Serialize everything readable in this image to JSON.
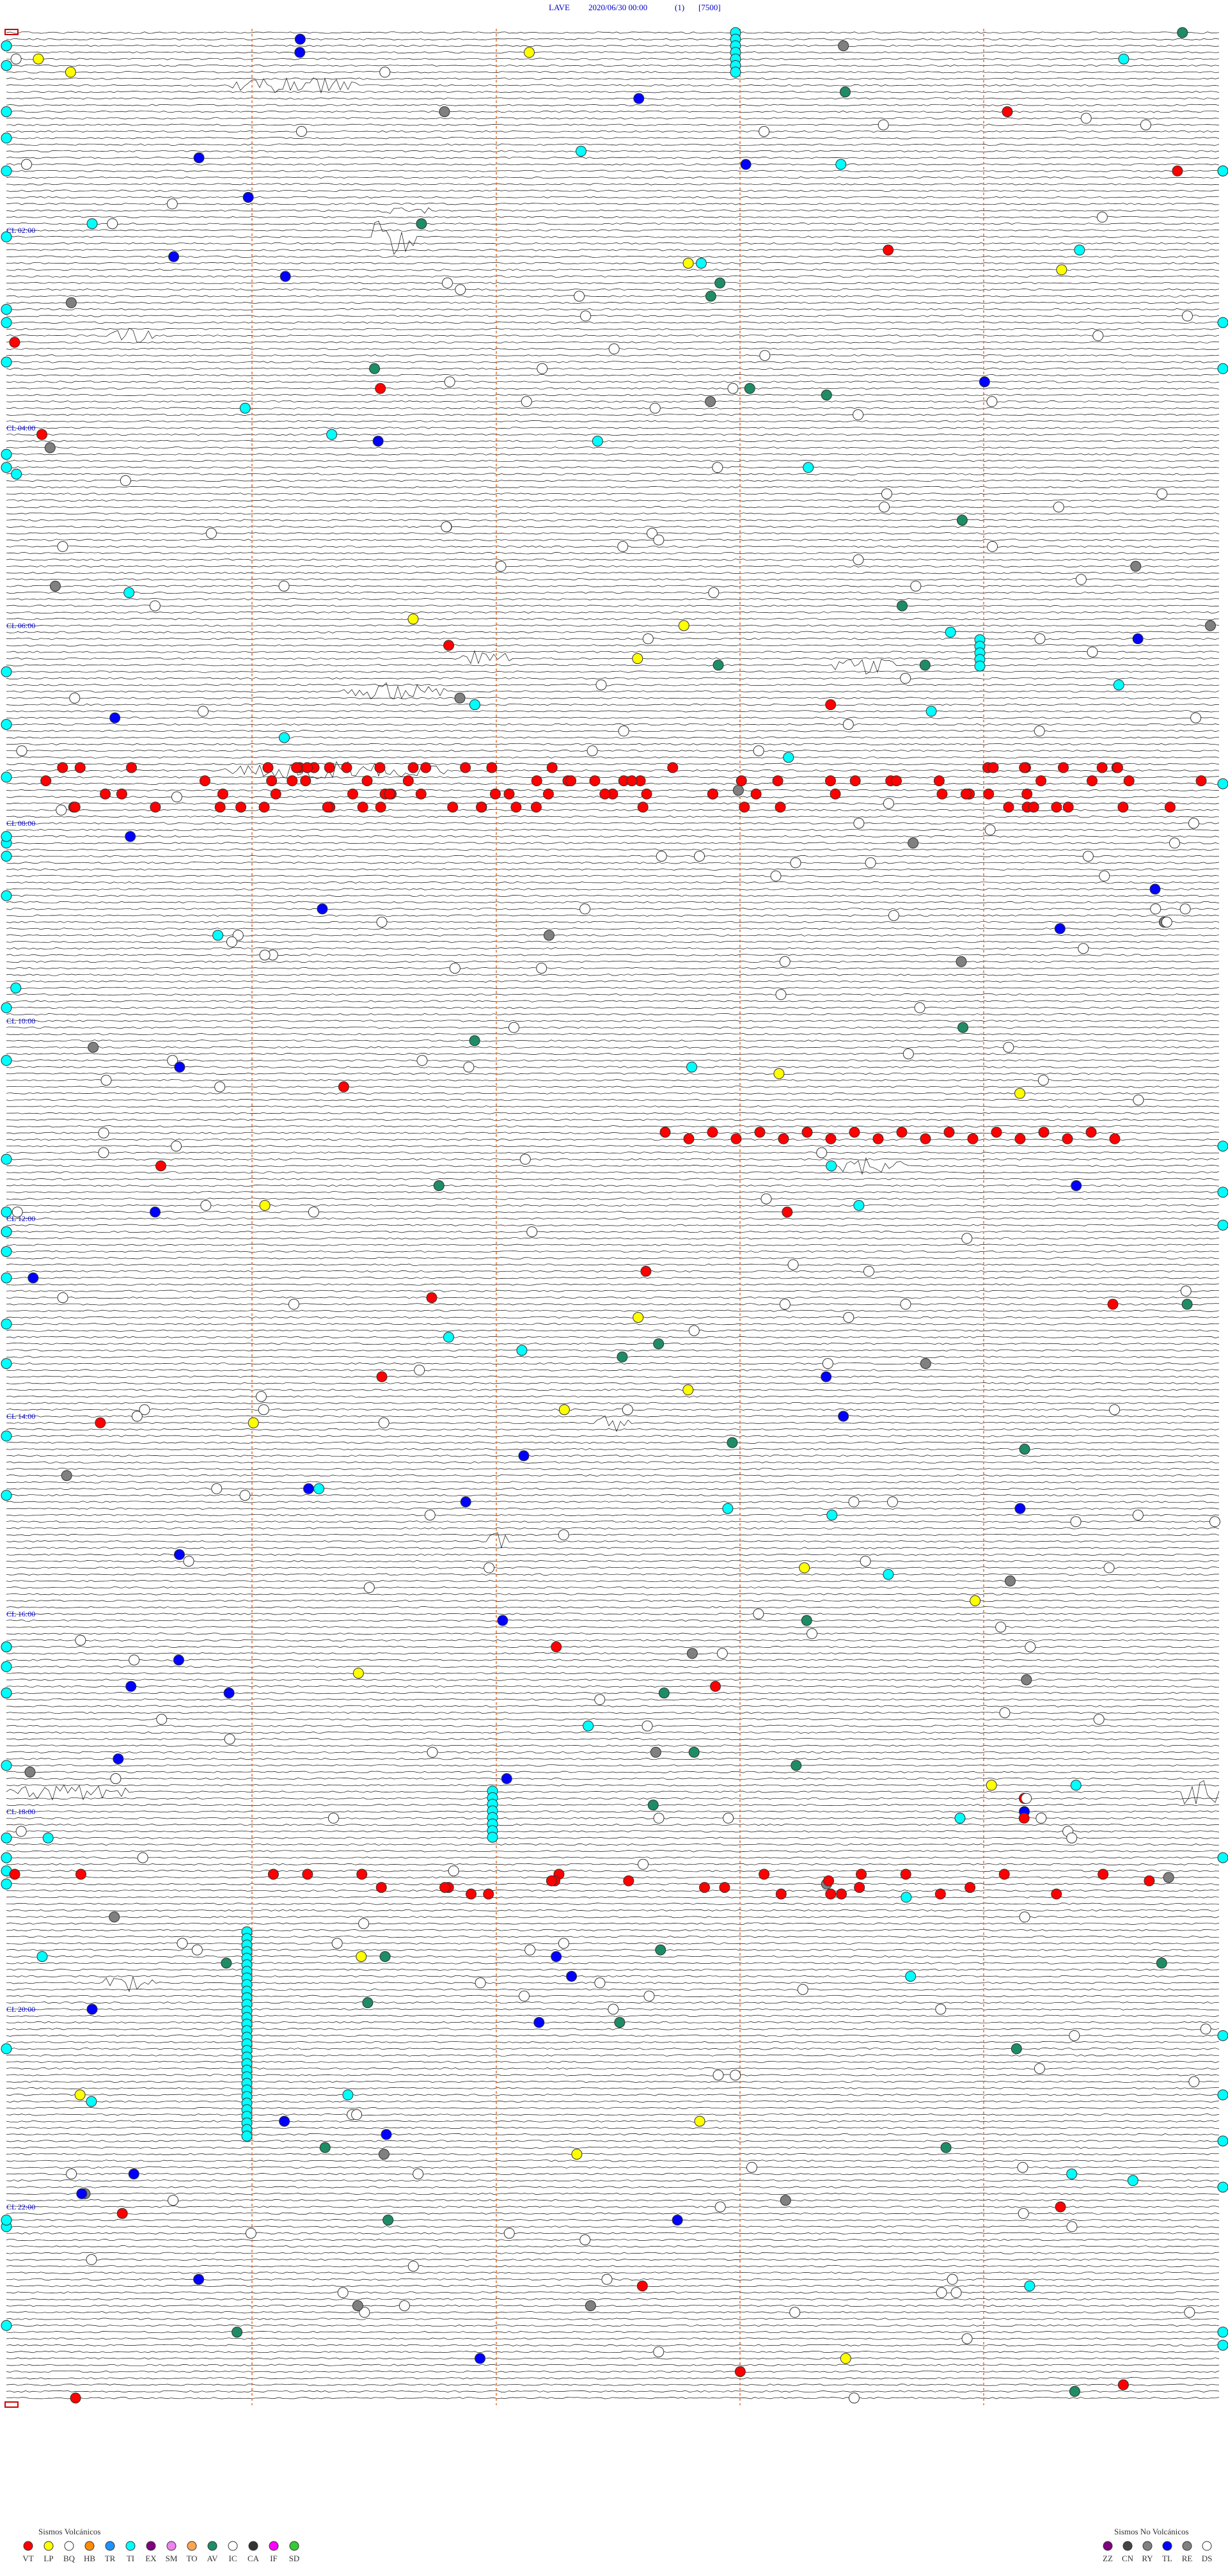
{
  "header": {
    "station": "LAVE",
    "datetime": "2020/06/30 00:00",
    "channel": "(1)",
    "scale": "[7500]"
  },
  "time_labels": [
    "CL  02:00",
    "CL  04:00",
    "CL  06:00",
    "CL  08:00",
    "CL  10:00",
    "CL  12:00",
    "CL  14:00",
    "CL  16:00",
    "CL  18:00",
    "CL  20:00",
    "CL  22:00"
  ],
  "legend_volcanic": {
    "title": "Sismos Volcánicos",
    "codes": [
      "VT",
      "LP",
      "BQ",
      "HB",
      "TR",
      "TI",
      "EX",
      "SM",
      "TO",
      "AV",
      "IC",
      "CA",
      "IF",
      "SD"
    ]
  },
  "legend_non_volcanic": {
    "title": "Sismos No Volcánicos",
    "codes": [
      "ZZ",
      "CN",
      "RY",
      "TL",
      "RE",
      "DS"
    ]
  }
}
